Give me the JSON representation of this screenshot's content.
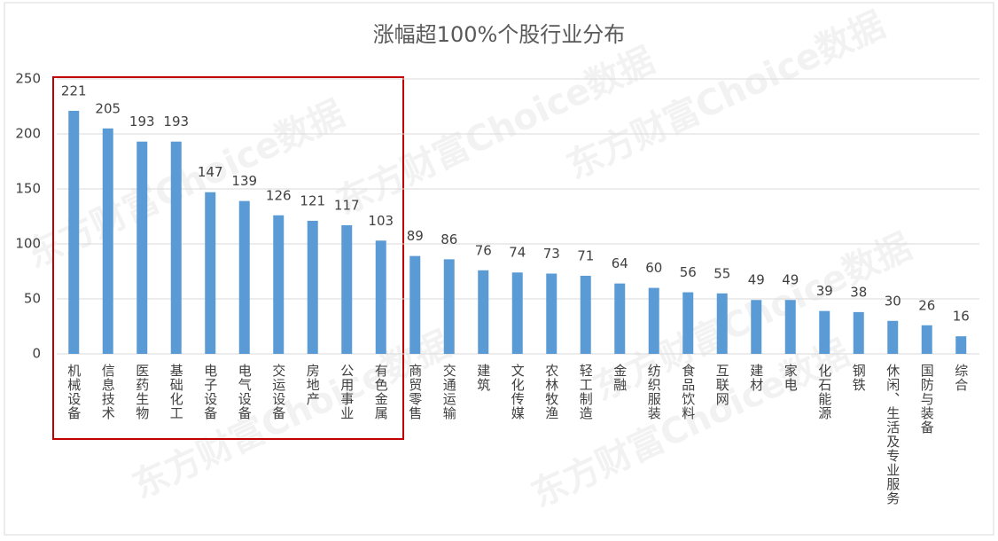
{
  "chart_data": {
    "type": "bar",
    "title": "涨幅超100%个股行业分布",
    "watermark": "东方财富Choice数据",
    "categories": [
      "机械设备",
      "信息技术",
      "医药生物",
      "基础化工",
      "电子设备",
      "电气设备",
      "交运设备",
      "房地产",
      "公用事业",
      "有色金属",
      "商贸零售",
      "交通运输",
      "建筑",
      "文化传媒",
      "农林牧渔",
      "轻工制造",
      "金融",
      "纺织服装",
      "食品饮料",
      "互联网",
      "建材",
      "家电",
      "化石能源",
      "钢铁",
      "休闲、生活及专业服务",
      "国防与装备",
      "综合"
    ],
    "values": [
      221,
      205,
      193,
      193,
      147,
      139,
      126,
      121,
      117,
      103,
      89,
      86,
      76,
      74,
      73,
      71,
      64,
      60,
      56,
      55,
      49,
      49,
      39,
      38,
      30,
      26,
      16
    ],
    "color": "#5b9bd5",
    "ylim": [
      0,
      250
    ],
    "yticks": [
      0,
      50,
      100,
      150,
      200,
      250
    ],
    "grid": true
  }
}
